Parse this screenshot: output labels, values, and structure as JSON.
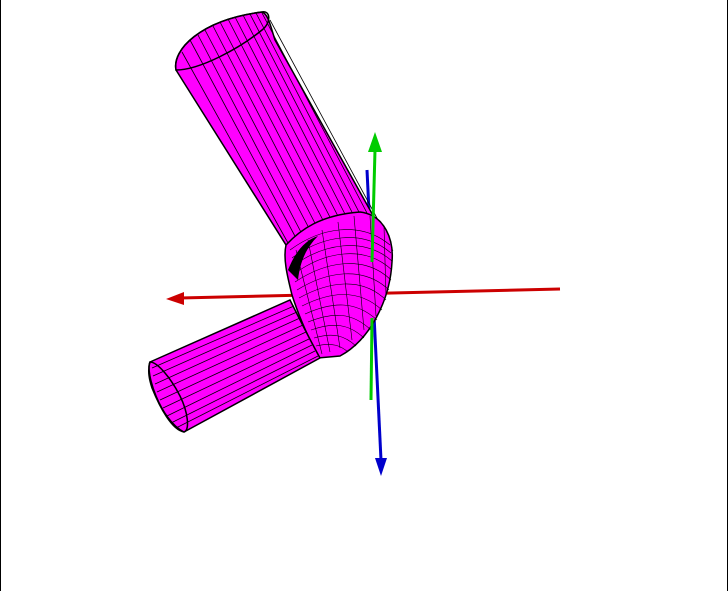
{
  "scene": {
    "background_color": "#ffffff",
    "model": {
      "name": "bent-pipe",
      "fill_color": "#ff00ff",
      "mesh_color": "#000000"
    },
    "axes": [
      {
        "name": "x-axis",
        "color": "#cc0000"
      },
      {
        "name": "y-axis",
        "color": "#00cc00"
      },
      {
        "name": "z-axis",
        "color": "#0000cc"
      }
    ]
  }
}
